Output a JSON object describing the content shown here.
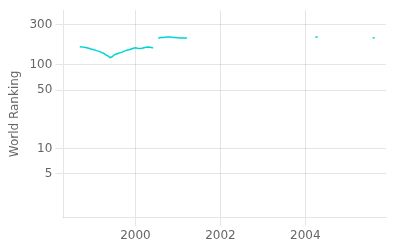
{
  "chart_data": {
    "type": "line",
    "ylabel": "World Ranking",
    "log": "y",
    "grid": true,
    "xlim": [
      1998.3,
      2005.9
    ],
    "ylim": [
      1.5,
      450
    ],
    "xticks": [
      2000,
      2002,
      2004
    ],
    "yticks": [
      5,
      10,
      50,
      100,
      300
    ],
    "series": [
      {
        "color": "#00d4d4",
        "x": [
          1998.7,
          1998.75,
          1998.8,
          1998.85,
          1998.9,
          1998.95,
          1999.0,
          1999.05,
          1999.1,
          1999.15,
          1999.2,
          1999.25,
          1999.3,
          1999.35,
          1999.4,
          1999.45,
          1999.5,
          1999.55,
          1999.6,
          1999.65,
          1999.7,
          1999.75,
          1999.8,
          1999.85,
          1999.9,
          1999.95,
          2000.0,
          2000.05,
          2000.1,
          2000.15,
          2000.2,
          2000.25,
          2000.3,
          2000.35,
          2000.4
        ],
        "values": [
          165,
          163,
          162,
          160,
          158,
          155,
          153,
          150,
          147,
          145,
          140,
          138,
          132,
          128,
          122,
          125,
          132,
          135,
          138,
          140,
          143,
          147,
          150,
          152,
          155,
          158,
          160,
          158,
          157,
          158,
          160,
          162,
          163,
          162,
          160
        ]
      },
      {
        "color": "#00d4d4",
        "x": [
          2000.55,
          2000.6,
          2000.65,
          2000.7,
          2000.75,
          2000.8,
          2000.85,
          2000.9,
          2000.95,
          2001.0,
          2001.05,
          2001.1,
          2001.15,
          2001.2
        ],
        "values": [
          210,
          212,
          213,
          214,
          215,
          215,
          214,
          213,
          212,
          211,
          210,
          210,
          210,
          210
        ]
      },
      {
        "color": "#00d4d4",
        "x": [
          2004.25,
          2004.28
        ],
        "values": [
          215,
          216
        ]
      },
      {
        "color": "#00d4d4",
        "x": [
          2005.6,
          2005.62
        ],
        "values": [
          210,
          211
        ]
      }
    ]
  }
}
